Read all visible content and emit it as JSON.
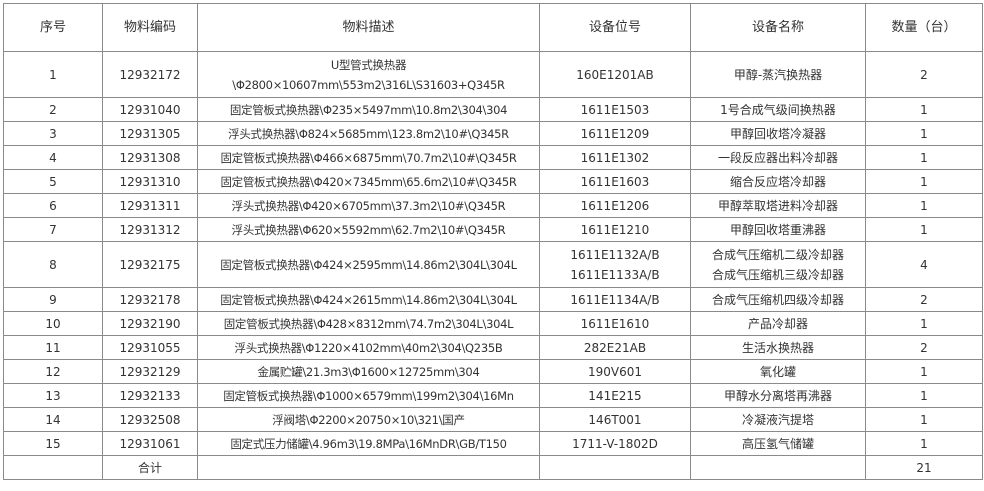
{
  "headers": [
    "序号",
    "物料编码",
    "物料描述",
    "设备位号",
    "设备名称",
    "数量（台）"
  ],
  "rows": [
    {
      "no": "1",
      "code": "12932172",
      "desc": [
        "U型管式换热器",
        "\\Φ2800×10607mm\\553m2\\316L\\S31603+Q345R"
      ],
      "tag": [
        "160E1201AB"
      ],
      "name": [
        "甲醇-蒸汽换热器"
      ],
      "qty": "2"
    },
    {
      "no": "2",
      "code": "12931040",
      "desc": [
        "固定管板式换热器\\Φ235×5497mm\\10.8m2\\304\\304"
      ],
      "tag": [
        "1611E1503"
      ],
      "name": [
        "1号合成气级间换热器"
      ],
      "qty": "1"
    },
    {
      "no": "3",
      "code": "12931305",
      "desc": [
        "浮头式换热器\\Φ824×5685mm\\123.8m2\\10#\\Q345R"
      ],
      "tag": [
        "1611E1209"
      ],
      "name": [
        "甲醇回收塔冷凝器"
      ],
      "qty": "1"
    },
    {
      "no": "4",
      "code": "12931308",
      "desc": [
        "固定管板式换热器\\Φ466×6875mm\\70.7m2\\10#\\Q345R"
      ],
      "tag": [
        "1611E1302"
      ],
      "name": [
        "一段反应器出料冷却器"
      ],
      "qty": "1"
    },
    {
      "no": "5",
      "code": "12931310",
      "desc": [
        "固定管板式换热器\\Φ420×7345mm\\65.6m2\\10#\\Q345R"
      ],
      "tag": [
        "1611E1603"
      ],
      "name": [
        "缩合反应塔冷却器"
      ],
      "qty": "1"
    },
    {
      "no": "6",
      "code": "12931311",
      "desc": [
        "浮头式换热器\\Φ420×6705mm\\37.3m2\\10#\\Q345R"
      ],
      "tag": [
        "1611E1206"
      ],
      "name": [
        "甲醇萃取塔进料冷却器"
      ],
      "qty": "1"
    },
    {
      "no": "7",
      "code": "12931312",
      "desc": [
        "浮头式换热器\\Φ620×5592mm\\62.7m2\\10#\\Q345R"
      ],
      "tag": [
        "1611E1210"
      ],
      "name": [
        "甲醇回收塔重沸器"
      ],
      "qty": "1"
    },
    {
      "no": "8",
      "code": "12932175",
      "desc": [
        "固定管板式换热器\\Φ424×2595mm\\14.86m2\\304L\\304L"
      ],
      "tag": [
        "1611E1132A/B",
        "1611E1133A/B"
      ],
      "name": [
        "合成气压缩机二级冷却器",
        "合成气压缩机三级冷却器"
      ],
      "qty": "4"
    },
    {
      "no": "9",
      "code": "12932178",
      "desc": [
        "固定管板式换热器\\Φ424×2615mm\\14.86m2\\304L\\304L"
      ],
      "tag": [
        "1611E1134A/B"
      ],
      "name": [
        "合成气压缩机四级冷却器"
      ],
      "qty": "2"
    },
    {
      "no": "10",
      "code": "12932190",
      "desc": [
        "固定管板式换热器\\Φ428×8312mm\\74.7m2\\304L\\304L"
      ],
      "tag": [
        "1611E1610"
      ],
      "name": [
        "产品冷却器"
      ],
      "qty": "1"
    },
    {
      "no": "11",
      "code": "12931055",
      "desc": [
        "浮头式换热器\\Φ1220×4102mm\\40m2\\304\\Q235B"
      ],
      "tag": [
        "282E21AB"
      ],
      "name": [
        "生活水换热器"
      ],
      "qty": "2"
    },
    {
      "no": "12",
      "code": "12932129",
      "desc": [
        "金属贮罐\\21.3m3\\Φ1600×12725mm\\304"
      ],
      "tag": [
        "190V601"
      ],
      "name": [
        "氧化罐"
      ],
      "qty": "1"
    },
    {
      "no": "13",
      "code": "12932133",
      "desc": [
        "固定管板式换热器\\Φ1000×6579mm\\199m2\\304\\16Mn"
      ],
      "tag": [
        "141E215"
      ],
      "name": [
        "甲醇水分离塔再沸器"
      ],
      "qty": "1"
    },
    {
      "no": "14",
      "code": "12932508",
      "desc": [
        "浮阀塔\\Φ2200×20750×10\\321\\国产"
      ],
      "tag": [
        "146T001"
      ],
      "name": [
        "冷凝液汽提塔"
      ],
      "qty": "1"
    },
    {
      "no": "15",
      "code": "12931061",
      "desc": [
        "固定式压力储罐\\4.96m3\\19.8MPa\\16MnDR\\GB/T150"
      ],
      "tag": [
        "1711-V-1802D"
      ],
      "name": [
        "高压氢气储罐"
      ],
      "qty": "1"
    }
  ],
  "total": {
    "label": "合计",
    "qty": "21"
  }
}
